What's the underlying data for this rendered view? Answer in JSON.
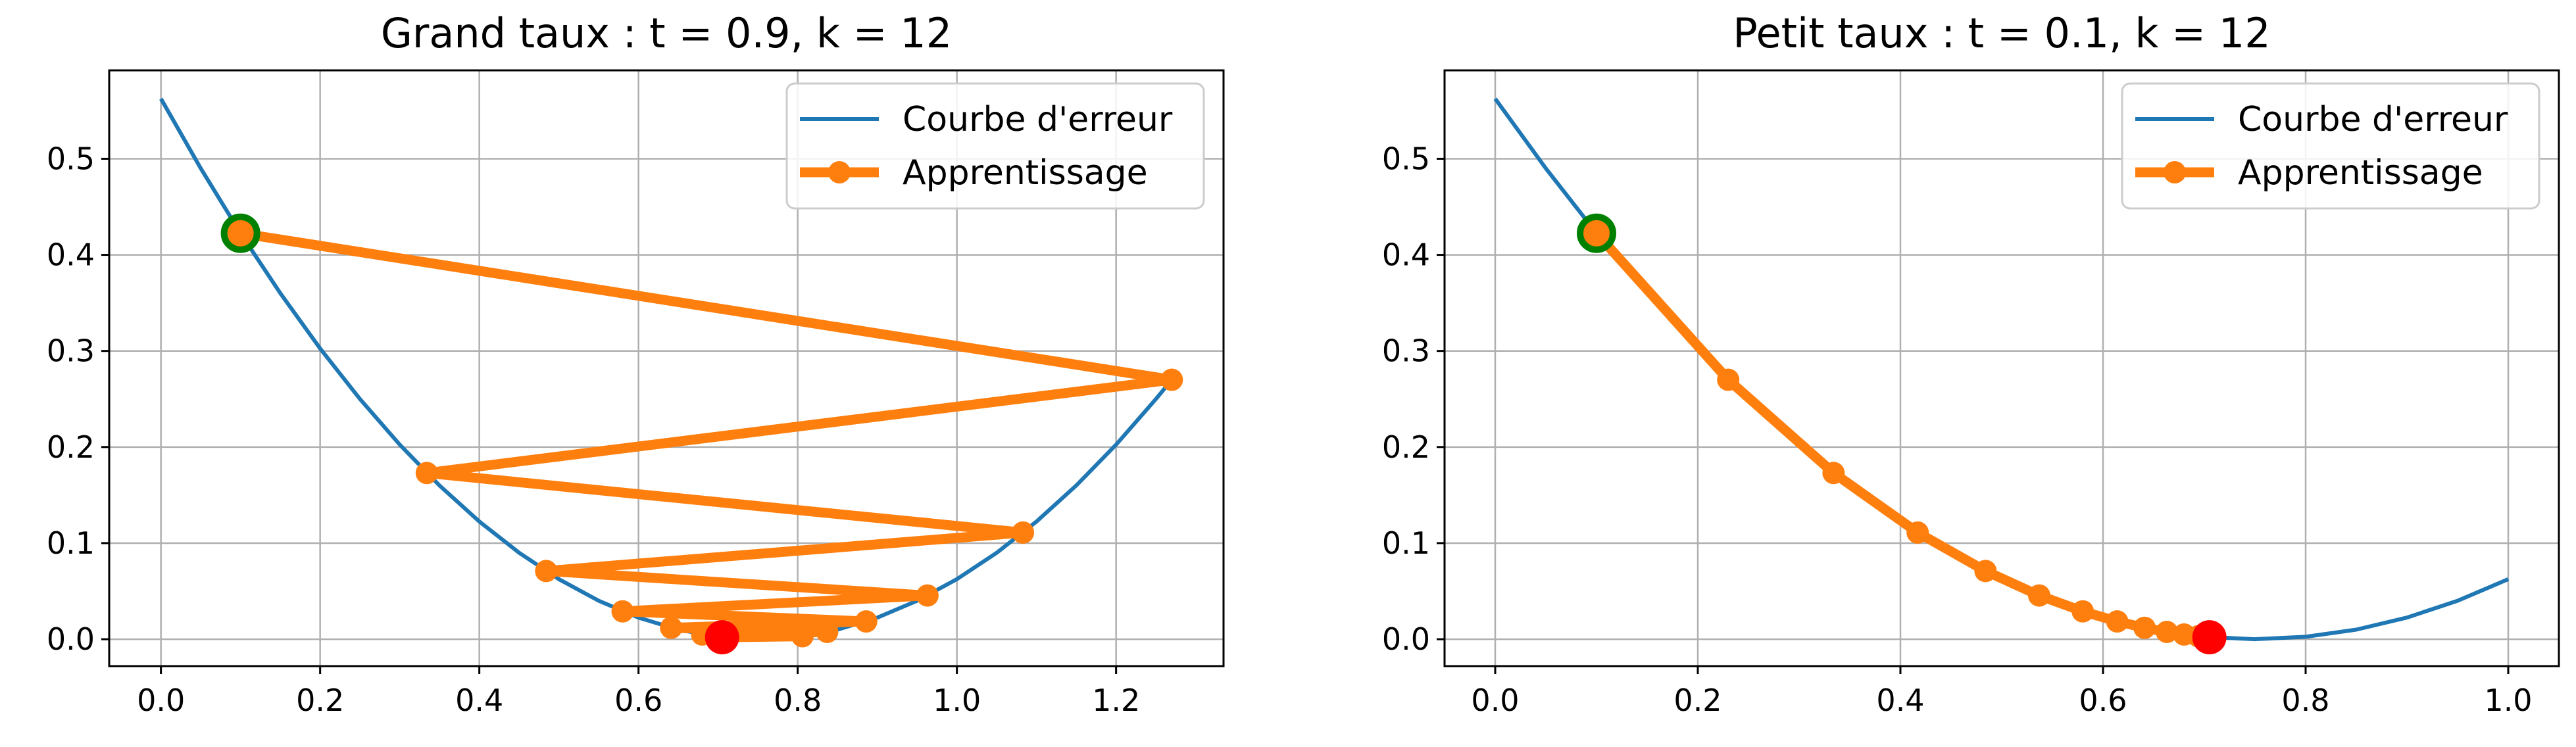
{
  "chart_data": [
    {
      "type": "line",
      "title": "Grand taux : t = 0.9, k = 12",
      "xlim": [
        -0.065,
        1.335
      ],
      "ylim": [
        -0.028,
        0.592
      ],
      "xticks": [
        "0.0",
        "0.2",
        "0.4",
        "0.6",
        "0.8",
        "1.0",
        "1.2"
      ],
      "yticks": [
        "0.0",
        "0.1",
        "0.2",
        "0.3",
        "0.4",
        "0.5"
      ],
      "grid": true,
      "legend_position": "top-right",
      "curve": {
        "name": "Courbe d'erreur",
        "color": "#1f77b4",
        "x": [
          0.0,
          0.05,
          0.1,
          0.15,
          0.2,
          0.25,
          0.3,
          0.35,
          0.4,
          0.45,
          0.5,
          0.55,
          0.6,
          0.65,
          0.7,
          0.75,
          0.8,
          0.85,
          0.9,
          0.95,
          1.0,
          1.05,
          1.1,
          1.15,
          1.2,
          1.25,
          1.27
        ],
        "y": [
          0.5625,
          0.49,
          0.4225,
          0.36,
          0.3025,
          0.25,
          0.2025,
          0.16,
          0.1225,
          0.09,
          0.0625,
          0.04,
          0.0225,
          0.01,
          0.0025,
          0.0,
          0.0025,
          0.01,
          0.0225,
          0.04,
          0.0625,
          0.09,
          0.1225,
          0.16,
          0.2025,
          0.25,
          0.27
        ]
      },
      "path": {
        "name": "Apprentissage",
        "color": "#ff7f0e",
        "x": [
          0.1,
          1.27,
          0.334,
          1.083,
          0.484,
          0.963,
          0.58,
          0.886,
          0.641,
          0.837,
          0.68,
          0.806,
          0.705
        ],
        "y": [
          0.4225,
          0.27,
          0.173,
          0.111,
          0.071,
          0.0455,
          0.029,
          0.0185,
          0.0119,
          0.0076,
          0.0049,
          0.0031,
          0.002
        ]
      },
      "start_point": {
        "x": 0.1,
        "y": 0.4225,
        "color": "#008000"
      },
      "end_point": {
        "x": 0.705,
        "y": 0.002,
        "color": "#ff0000"
      }
    },
    {
      "type": "line",
      "title": "Petit taux : t = 0.1, k = 12",
      "xlim": [
        -0.05,
        1.05
      ],
      "ylim": [
        -0.028,
        0.592
      ],
      "xticks": [
        "0.0",
        "0.2",
        "0.4",
        "0.6",
        "0.8",
        "1.0"
      ],
      "yticks": [
        "0.0",
        "0.1",
        "0.2",
        "0.3",
        "0.4",
        "0.5"
      ],
      "grid": true,
      "legend_position": "top-right",
      "curve": {
        "name": "Courbe d'erreur",
        "color": "#1f77b4",
        "x": [
          0.0,
          0.05,
          0.1,
          0.15,
          0.2,
          0.25,
          0.3,
          0.35,
          0.4,
          0.45,
          0.5,
          0.55,
          0.6,
          0.65,
          0.7,
          0.75,
          0.8,
          0.85,
          0.9,
          0.95,
          1.0
        ],
        "y": [
          0.5625,
          0.49,
          0.4225,
          0.36,
          0.3025,
          0.25,
          0.2025,
          0.16,
          0.1225,
          0.09,
          0.0625,
          0.04,
          0.0225,
          0.01,
          0.0025,
          0.0,
          0.0025,
          0.01,
          0.0225,
          0.04,
          0.0625
        ]
      },
      "path": {
        "name": "Apprentissage",
        "color": "#ff7f0e",
        "x": [
          0.1,
          0.23,
          0.334,
          0.417,
          0.484,
          0.537,
          0.58,
          0.614,
          0.641,
          0.663,
          0.68,
          0.694,
          0.705
        ],
        "y": [
          0.4225,
          0.27,
          0.173,
          0.111,
          0.071,
          0.0455,
          0.029,
          0.0185,
          0.0119,
          0.0076,
          0.0049,
          0.0031,
          0.002
        ]
      },
      "start_point": {
        "x": 0.1,
        "y": 0.4225,
        "color": "#008000"
      },
      "end_point": {
        "x": 0.705,
        "y": 0.002,
        "color": "#ff0000"
      }
    }
  ]
}
